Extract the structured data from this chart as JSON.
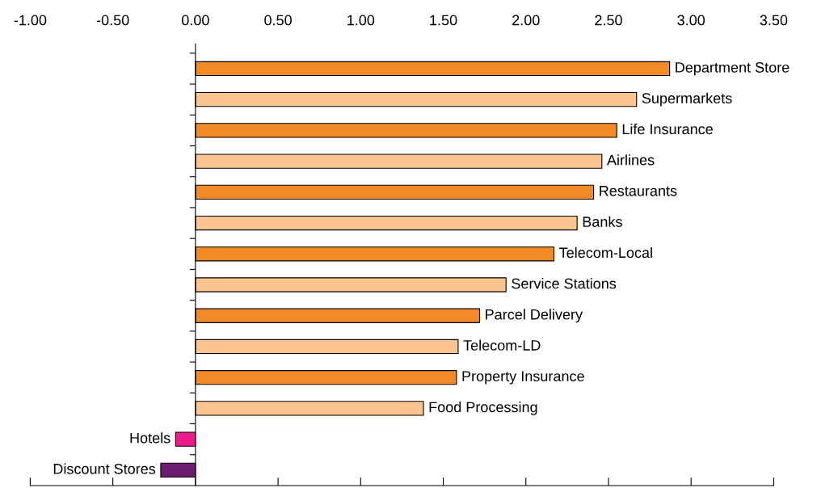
{
  "chart_data": {
    "type": "bar",
    "orientation": "horizontal",
    "categories": [
      "Department Store",
      "Supermarkets",
      "Life Insurance",
      "Airlines",
      "Restaurants",
      "Banks",
      "Telecom-Local",
      "Service Stations",
      "Parcel Delivery",
      "Telecom-LD",
      "Property Insurance",
      "Food Processing",
      "Hotels",
      "Discount Stores"
    ],
    "values": [
      2.87,
      2.67,
      2.55,
      2.46,
      2.41,
      2.31,
      2.17,
      1.88,
      1.72,
      1.59,
      1.58,
      1.38,
      -0.12,
      -0.21
    ],
    "colors": [
      "#f28a25",
      "#fcc58f",
      "#f28a25",
      "#fcc58f",
      "#f28a25",
      "#fcc58f",
      "#f28a25",
      "#fcc58f",
      "#f28a25",
      "#fcc58f",
      "#f28a25",
      "#fcc58f",
      "#ec1b8c",
      "#6b1e6f"
    ],
    "xlim": [
      -1.0,
      3.5
    ],
    "xticks": [
      {
        "value": -1.0,
        "label": "-1.00"
      },
      {
        "value": -0.5,
        "label": "-0.50"
      },
      {
        "value": 0,
        "label": "0.00"
      },
      {
        "value": 0.5,
        "label": "0.50"
      },
      {
        "value": 1.0,
        "label": "1.00"
      },
      {
        "value": 1.5,
        "label": "1.50"
      },
      {
        "value": 2.0,
        "label": "2.00"
      },
      {
        "value": 2.5,
        "label": "2.50"
      },
      {
        "value": 3.0,
        "label": "3.00"
      },
      {
        "value": 3.5,
        "label": "3.50"
      }
    ],
    "legend": false
  }
}
